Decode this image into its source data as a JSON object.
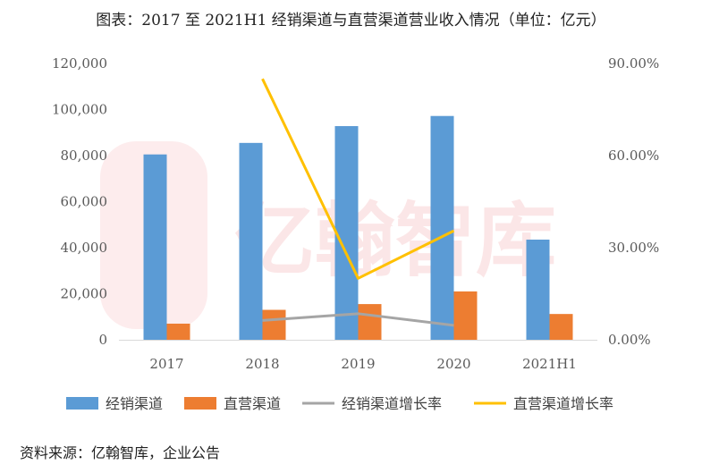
{
  "title": "图表：2017 至 2021H1 经销渠道与直营渠道营业收入情况（单位：亿元）",
  "source": "资料来源：亿翰智库，企业公告",
  "watermark": "亿翰智库",
  "chart_data": {
    "type": "bar",
    "categories": [
      "2017",
      "2018",
      "2019",
      "2020",
      "2021H1"
    ],
    "y_left": {
      "min": 0,
      "max": 120000,
      "ticks": [
        "0",
        "20,000",
        "40,000",
        "60,000",
        "80,000",
        "100,000",
        "120,000"
      ]
    },
    "y_right": {
      "min": 0,
      "max": 0.9,
      "ticks": [
        "0.00%",
        "30.00%",
        "60.00%",
        "90.00%"
      ]
    },
    "series": [
      {
        "name": "经销渠道",
        "kind": "bar",
        "axis": "left",
        "color": "#5b9bd5",
        "values": [
          80500,
          85500,
          92800,
          97200,
          43500
        ]
      },
      {
        "name": "直营渠道",
        "kind": "bar",
        "axis": "left",
        "color": "#ed7d31",
        "values": [
          7000,
          13000,
          15500,
          21000,
          11200
        ]
      },
      {
        "name": "经销渠道增长率",
        "kind": "line",
        "axis": "right",
        "color": "#a5a5a5",
        "values": [
          null,
          0.063,
          0.085,
          0.047,
          null
        ]
      },
      {
        "name": "直营渠道增长率",
        "kind": "line",
        "axis": "right",
        "color": "#ffc000",
        "values": [
          null,
          0.85,
          0.2,
          0.355,
          null
        ]
      }
    ],
    "legend_position": "bottom",
    "grid": false
  }
}
